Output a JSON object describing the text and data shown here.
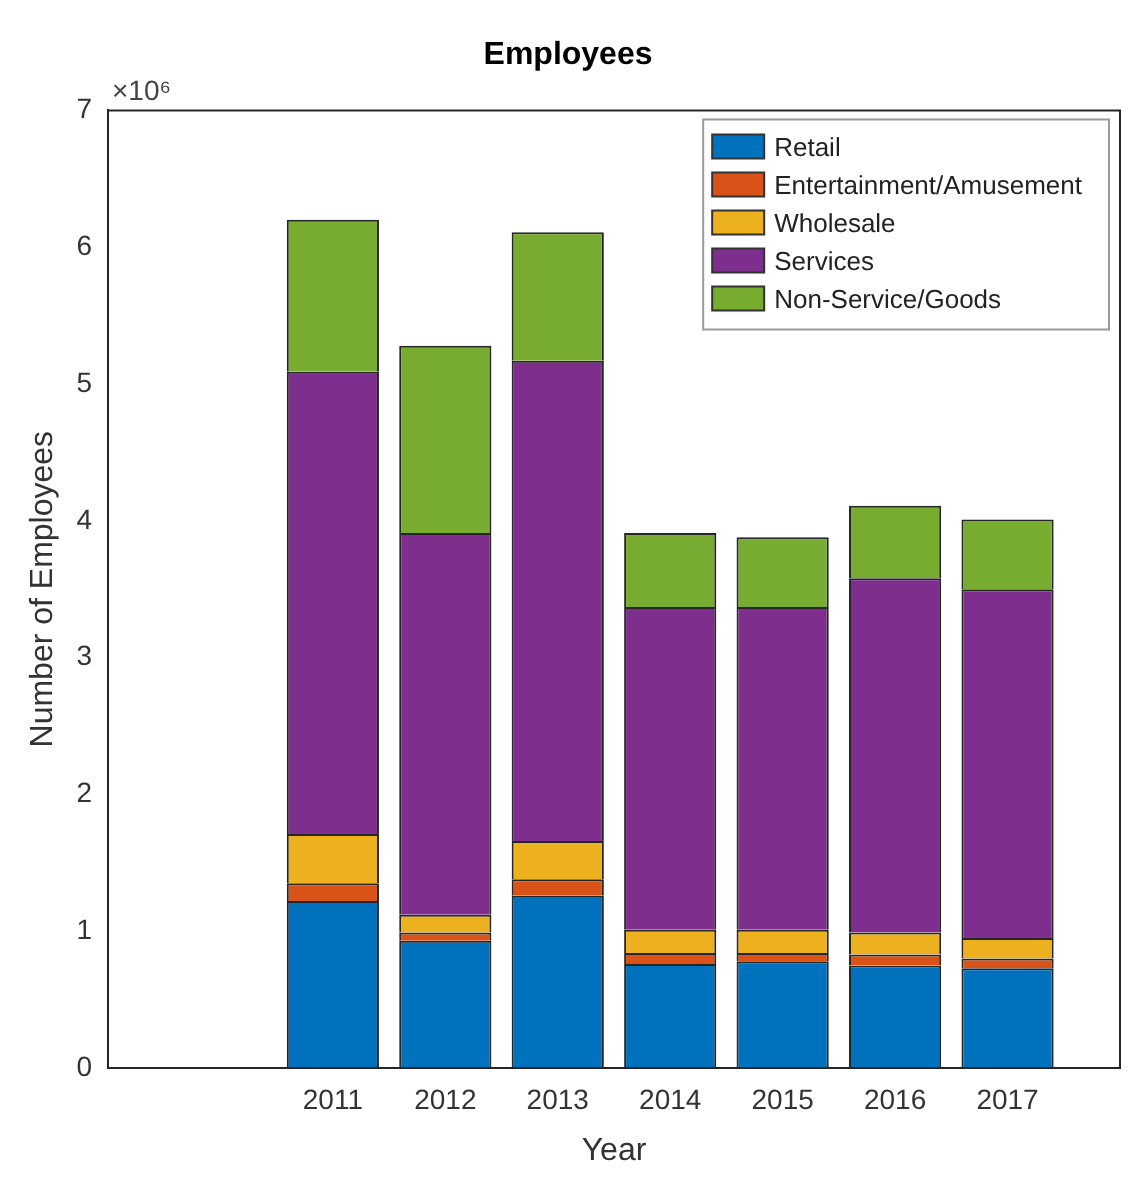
{
  "chart_data": {
    "type": "bar",
    "title": "Employees",
    "xlabel": "Year",
    "ylabel": "Number of Employees",
    "categories": [
      null,
      null,
      "2011",
      "2012",
      "2013",
      "2014",
      "2015",
      "2016",
      "2017",
      null
    ],
    "stacked": true,
    "series": [
      {
        "name": "Retail",
        "color": "#0072bd",
        "values": [
          null,
          null,
          1.22,
          0.93,
          1.26,
          0.76,
          0.78,
          0.75,
          0.73,
          null
        ]
      },
      {
        "name": "Entertainment/Amusement",
        "color": "#d95319",
        "values": [
          null,
          null,
          0.13,
          0.06,
          0.12,
          0.08,
          0.06,
          0.08,
          0.07,
          null
        ]
      },
      {
        "name": "Wholesale",
        "color": "#edb120",
        "values": [
          null,
          null,
          0.36,
          0.13,
          0.28,
          0.17,
          0.17,
          0.16,
          0.15,
          null
        ]
      },
      {
        "name": "Services",
        "color": "#7e2f8e",
        "values": [
          null,
          null,
          3.38,
          2.79,
          3.51,
          2.36,
          2.36,
          2.59,
          2.55,
          null
        ]
      },
      {
        "name": "Non-Service/Goods",
        "color": "#77ac30",
        "values": [
          null,
          null,
          1.11,
          1.37,
          0.94,
          0.54,
          0.51,
          0.53,
          0.51,
          null
        ]
      }
    ],
    "ylim": [
      0,
      7
    ],
    "yticks": [
      0,
      1,
      2,
      3,
      4,
      5,
      6,
      7
    ],
    "annotations": [
      "×10⁶"
    ],
    "legend": "top right",
    "grid": false
  }
}
